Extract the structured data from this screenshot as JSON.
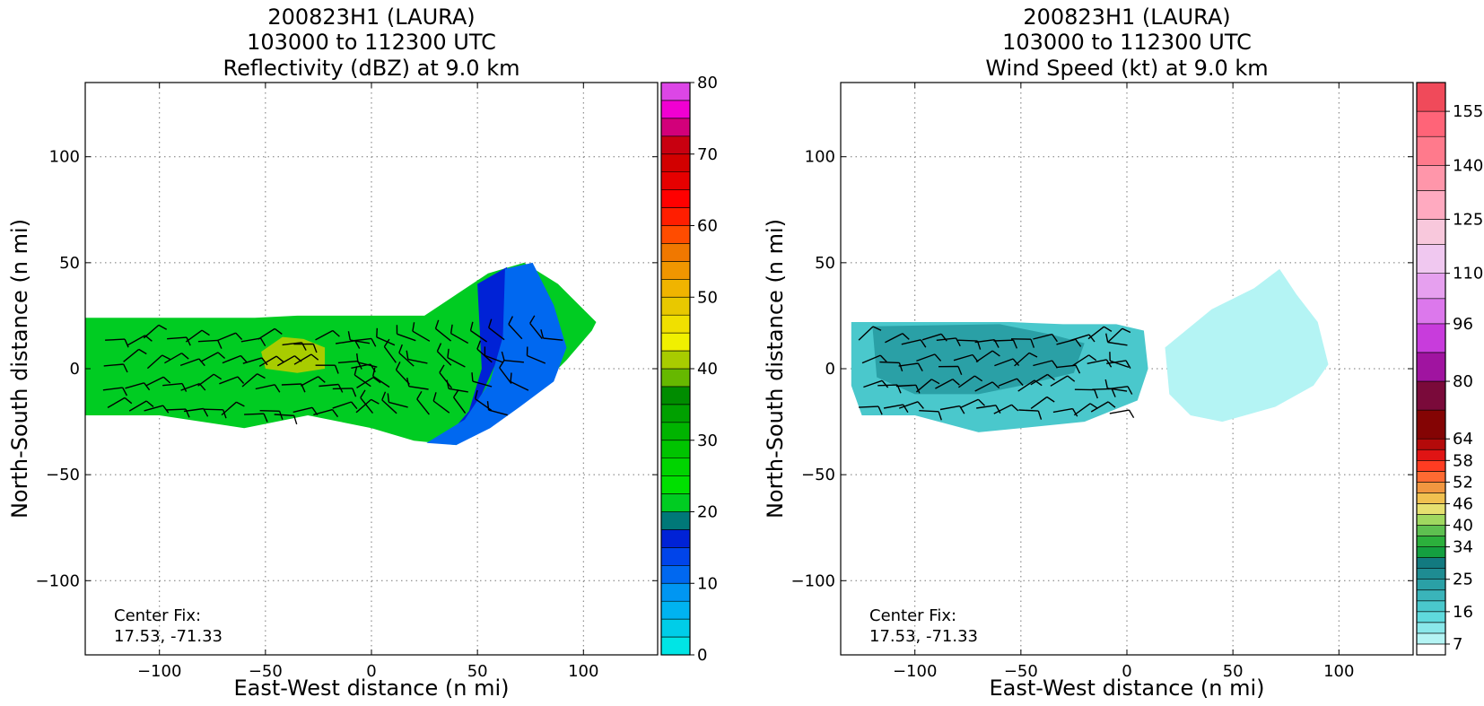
{
  "chart_data": [
    {
      "type": "heatmap",
      "title_lines": [
        "200823H1 (LAURA)",
        "103000 to 112300 UTC",
        "Reflectivity (dBZ) at 9.0 km"
      ],
      "xlabel": "East-West distance (n mi)",
      "ylabel": "North-South distance (n mi)",
      "xlim": [
        -135,
        135
      ],
      "ylim": [
        -135,
        135
      ],
      "xticks": [
        -100,
        -50,
        0,
        50,
        100
      ],
      "yticks": [
        -100,
        -50,
        0,
        50,
        100
      ],
      "xtick_labels": [
        "−100",
        "−50",
        "0",
        "50",
        "100"
      ],
      "ytick_labels": [
        "−100",
        "−50",
        "0",
        "50",
        "100"
      ],
      "grid": true,
      "annotation": [
        "Center Fix:",
        "17.53, -71.33"
      ],
      "colorbar": {
        "label": "Reflectivity (dBZ)",
        "levels": [
          0,
          2.5,
          5,
          7.5,
          10,
          12.5,
          15,
          17.5,
          20,
          22.5,
          25,
          27.5,
          30,
          32.5,
          35,
          37.5,
          40,
          42.5,
          45,
          47.5,
          50,
          52.5,
          55,
          57.5,
          60,
          62.5,
          65,
          67.5,
          70,
          72.5,
          75,
          77.5,
          80
        ],
        "colors": [
          "#00e5e5",
          "#00cde8",
          "#00b3f0",
          "#0096f2",
          "#0068f0",
          "#0044ea",
          "#0022d6",
          "#007878",
          "#00cc22",
          "#00e000",
          "#00d400",
          "#00c400",
          "#00b400",
          "#00a000",
          "#008c00",
          "#66b800",
          "#a8cc00",
          "#f0f000",
          "#f0e000",
          "#e8c800",
          "#f0b400",
          "#f09600",
          "#f07800",
          "#ff4c00",
          "#ff1e00",
          "#ff0000",
          "#e60000",
          "#d20000",
          "#c80010",
          "#d2007a",
          "#f000d2",
          "#dc46e6",
          "#b85ce0",
          "#8c4cb4",
          "#5a2e6e",
          "#000000"
        ],
        "tick_values": [
          0,
          10,
          20,
          30,
          40,
          50,
          60,
          70,
          80
        ],
        "tick_labels": [
          "0",
          "10",
          "20",
          "30",
          "40",
          "50",
          "60",
          "70",
          "80"
        ]
      },
      "field_regions": [
        {
          "desc": "main echo band",
          "value_dbz": 22,
          "outline": [
            [
              -135,
              24
            ],
            [
              -55,
              24
            ],
            [
              -35,
              25
            ],
            [
              25,
              25
            ],
            [
              55,
              45
            ],
            [
              72,
              50
            ],
            [
              88,
              40
            ],
            [
              106,
              22
            ],
            [
              104,
              18
            ],
            [
              92,
              4
            ],
            [
              80,
              -8
            ],
            [
              65,
              -20
            ],
            [
              50,
              -30
            ],
            [
              40,
              -36
            ],
            [
              20,
              -34
            ],
            [
              0,
              -28
            ],
            [
              -30,
              -22
            ],
            [
              -60,
              -28
            ],
            [
              -100,
              -22
            ],
            [
              -135,
              -22
            ]
          ]
        },
        {
          "desc": "weak echo ribbon",
          "value_dbz": 15,
          "outline": [
            [
              50,
              40
            ],
            [
              64,
              48
            ],
            [
              62,
              10
            ],
            [
              52,
              -12
            ],
            [
              42,
              -28
            ],
            [
              34,
              -34
            ],
            [
              46,
              -20
            ],
            [
              52,
              0
            ]
          ]
        },
        {
          "desc": "low echo band (blue)",
          "value_dbz": 11,
          "outline": [
            [
              63,
              47
            ],
            [
              76,
              50
            ],
            [
              86,
              30
            ],
            [
              92,
              10
            ],
            [
              86,
              -6
            ],
            [
              70,
              -18
            ],
            [
              56,
              -28
            ],
            [
              40,
              -36
            ],
            [
              26,
              -35
            ],
            [
              44,
              -24
            ],
            [
              56,
              -6
            ],
            [
              62,
              15
            ]
          ]
        },
        {
          "desc": "bright core",
          "value_dbz": 41,
          "outline": [
            [
              -52,
              8
            ],
            [
              -42,
              15
            ],
            [
              -32,
              14
            ],
            [
              -22,
              10
            ],
            [
              -22,
              0
            ],
            [
              -35,
              -2
            ],
            [
              -50,
              0
            ]
          ]
        }
      ],
      "wind_barbs_desc": "Flight-level wind barbs overlaid across the echo region"
    },
    {
      "type": "heatmap",
      "title_lines": [
        "200823H1 (LAURA)",
        "103000 to 112300 UTC",
        "Wind Speed (kt) at 9.0 km"
      ],
      "xlabel": "East-West distance (n mi)",
      "ylabel": "North-South distance (n mi)",
      "xlim": [
        -135,
        135
      ],
      "ylim": [
        -135,
        135
      ],
      "xticks": [
        -100,
        -50,
        0,
        50,
        100
      ],
      "yticks": [
        -100,
        -50,
        0,
        50,
        100
      ],
      "xtick_labels": [
        "−100",
        "−50",
        "0",
        "50",
        "100"
      ],
      "ytick_labels": [
        "−100",
        "−50",
        "0",
        "50",
        "100"
      ],
      "grid": true,
      "annotation": [
        "Center Fix:",
        "17.53, -71.33"
      ],
      "colorbar": {
        "label": "Wind Speed (kt)",
        "levels": [
          4,
          7,
          10,
          13,
          16,
          19,
          22,
          25,
          28,
          31,
          34,
          37,
          40,
          43,
          46,
          49,
          52,
          55,
          58,
          61,
          64,
          72,
          80,
          88,
          96,
          103,
          110,
          118,
          125,
          133,
          140,
          148,
          155,
          163
        ],
        "colors": [
          "#ffffff",
          "#b4f4f4",
          "#8ae8ea",
          "#5fdadd",
          "#4ac8cc",
          "#3ab4ba",
          "#2aa0a6",
          "#1e8c92",
          "#127a80",
          "#14a040",
          "#2cb03c",
          "#5ec050",
          "#a0d860",
          "#e6e070",
          "#f0c050",
          "#f09640",
          "#ff6a32",
          "#ff3c22",
          "#e01414",
          "#b40a0a",
          "#840404",
          "#7a0a3a",
          "#a014a0",
          "#c83cdc",
          "#dc78ec",
          "#e6a0ef",
          "#f0c8f0",
          "#f8c8dc",
          "#ffaac0",
          "#ff96aa",
          "#ff7a8c",
          "#ff6478",
          "#f04a5a",
          "#c8283c",
          "#a01438",
          "#8c1440"
        ],
        "tick_values": [
          7,
          16,
          25,
          34,
          40,
          46,
          52,
          58,
          64,
          80,
          96,
          110,
          125,
          140,
          155
        ],
        "tick_labels": [
          "7",
          "16",
          "25",
          "34",
          "40",
          "46",
          "52",
          "58",
          "64",
          "80",
          "96",
          "110",
          "125",
          "140",
          "155"
        ]
      },
      "field_regions": [
        {
          "desc": "west wind field",
          "value_kt": 17,
          "outline": [
            [
              -130,
              22
            ],
            [
              -55,
              22
            ],
            [
              -30,
              21
            ],
            [
              -5,
              21
            ],
            [
              8,
              18
            ],
            [
              10,
              0
            ],
            [
              5,
              -15
            ],
            [
              -20,
              -25
            ],
            [
              -50,
              -28
            ],
            [
              -70,
              -30
            ],
            [
              -100,
              -22
            ],
            [
              -125,
              -22
            ],
            [
              -130,
              -8
            ]
          ]
        },
        {
          "desc": "stronger core west",
          "value_kt": 24,
          "outline": [
            [
              -120,
              20
            ],
            [
              -60,
              21
            ],
            [
              -35,
              16
            ],
            [
              -20,
              12
            ],
            [
              -25,
              -2
            ],
            [
              -50,
              -8
            ],
            [
              -70,
              -12
            ],
            [
              -100,
              -12
            ],
            [
              -118,
              -4
            ]
          ]
        },
        {
          "desc": "east light winds",
          "value_kt": 9,
          "outline": [
            [
              40,
              28
            ],
            [
              60,
              38
            ],
            [
              72,
              47
            ],
            [
              80,
              35
            ],
            [
              90,
              22
            ],
            [
              95,
              2
            ],
            [
              88,
              -8
            ],
            [
              70,
              -18
            ],
            [
              45,
              -25
            ],
            [
              30,
              -22
            ],
            [
              20,
              -12
            ],
            [
              18,
              10
            ]
          ]
        }
      ],
      "wind_barbs_desc": "Flight-level wind barbs overlaid across the wind field"
    }
  ]
}
